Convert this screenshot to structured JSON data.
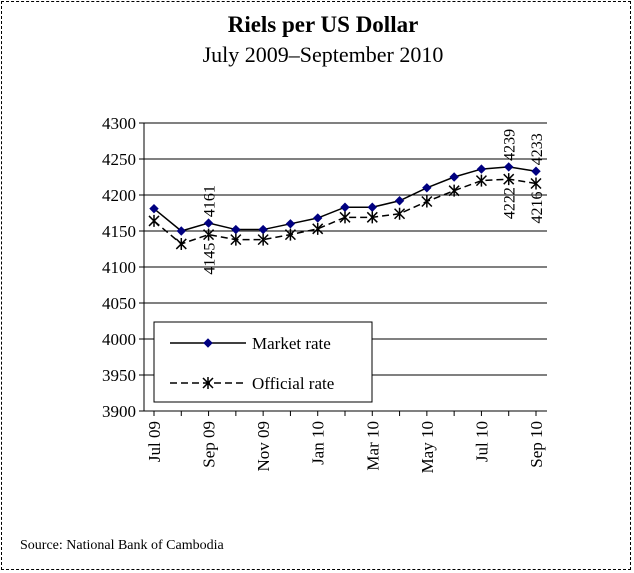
{
  "chart_data": {
    "type": "line",
    "title": "Riels per US Dollar",
    "subtitle": "July 2009–September 2010",
    "xlabel": "",
    "ylabel": "",
    "ylim": [
      3900,
      4300
    ],
    "yticks": [
      "4300",
      "4250",
      "4200",
      "4150",
      "4100",
      "4050",
      "4000",
      "3950",
      "3900"
    ],
    "xtick_labels": [
      "Jul 09",
      "Sep 09",
      "Nov 09",
      "Jan 10",
      "Mar 10",
      "May 10",
      "Jul 10",
      "Sep 10"
    ],
    "categories": [
      "Jul 09",
      "Aug 09",
      "Sep 09",
      "Oct 09",
      "Nov 09",
      "Dec 09",
      "Jan 10",
      "Feb 10",
      "Mar 10",
      "Apr 10",
      "May 10",
      "Jun 10",
      "Jul 10",
      "Aug 10",
      "Sep 10"
    ],
    "grid": "horizontal",
    "legend": "bottom-left",
    "series": [
      {
        "name": "Market rate",
        "color": "#000080",
        "marker": "diamond",
        "values": [
          4181,
          4150,
          4161,
          4152,
          4152,
          4160,
          4168,
          4183,
          4183,
          4192,
          4210,
          4225,
          4236,
          4239,
          4233
        ]
      },
      {
        "name": "Official rate",
        "color": "#000000",
        "marker": "star",
        "values": [
          4164,
          4132,
          4145,
          4138,
          4138,
          4145,
          4153,
          4169,
          4169,
          4174,
          4191,
          4206,
          4220,
          4222,
          4216
        ]
      }
    ],
    "data_labels": [
      {
        "series": 0,
        "index": 2,
        "text": "4161"
      },
      {
        "series": 1,
        "index": 2,
        "text": "4145"
      },
      {
        "series": 0,
        "index": 13,
        "text": "4239"
      },
      {
        "series": 1,
        "index": 13,
        "text": "4222"
      },
      {
        "series": 0,
        "index": 14,
        "text": "4233"
      },
      {
        "series": 1,
        "index": 14,
        "text": "4216"
      }
    ]
  },
  "source": "Source: National Bank of Cambodia"
}
